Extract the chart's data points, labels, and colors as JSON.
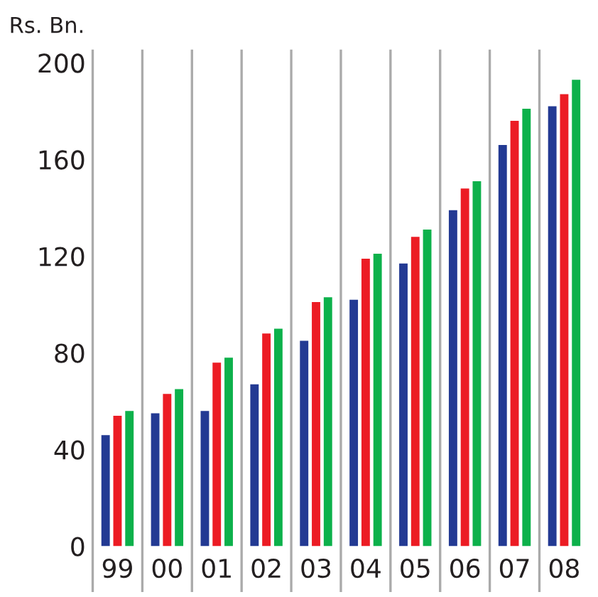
{
  "chart_data": {
    "type": "bar",
    "ylabel": "Rs. Bn.",
    "categories": [
      "99",
      "00",
      "01",
      "02",
      "03",
      "04",
      "05",
      "06",
      "07",
      "08"
    ],
    "series": [
      {
        "color": "#233a93",
        "values": [
          46,
          55,
          56,
          67,
          85,
          102,
          117,
          139,
          166,
          182
        ]
      },
      {
        "color": "#ec1c24",
        "values": [
          54,
          63,
          76,
          88,
          101,
          119,
          128,
          148,
          176,
          187
        ]
      },
      {
        "color": "#0db14b",
        "values": [
          56,
          65,
          78,
          90,
          103,
          121,
          131,
          151,
          181,
          193
        ]
      }
    ],
    "ylim": [
      0,
      205
    ],
    "yticks": [
      0,
      40,
      80,
      120,
      160,
      200
    ],
    "grid": "x"
  }
}
